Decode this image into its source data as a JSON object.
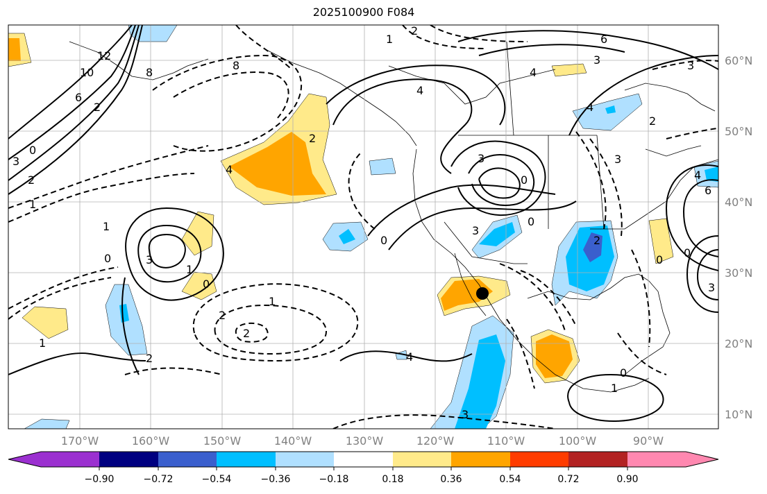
{
  "title": "2025100900 F084",
  "lat_labels": [
    "60°N",
    "50°N",
    "40°N",
    "30°N",
    "20°N",
    "10°N"
  ],
  "lon_labels": [
    "170°W",
    "160°W",
    "150°W",
    "140°W",
    "130°W",
    "120°W",
    "110°W",
    "100°W",
    "90°W"
  ],
  "colorbar": {
    "tick_labels": [
      "−0.90",
      "−0.72",
      "−0.54",
      "−0.36",
      "−0.18",
      "0.18",
      "0.36",
      "0.54",
      "0.72",
      "0.90"
    ],
    "colors": [
      "#9b30d0",
      "#000080",
      "#3a5fcd",
      "#00bfff",
      "#b0e0ff",
      "#ffffff",
      "#ffea8a",
      "#ffa500",
      "#ff3c00",
      "#b22222",
      "#ff88b0"
    ]
  },
  "contour_labels": [
    "2",
    "1",
    "6",
    "3",
    "4",
    "8",
    "10",
    "12",
    "8",
    "6",
    "4",
    "2",
    "0",
    "1",
    "2",
    "4",
    "3",
    "2",
    "0",
    "1",
    "2",
    "2",
    "1",
    "0",
    "3",
    "0",
    "1",
    "1",
    "2",
    "4",
    "3",
    "3",
    "0",
    "0",
    "3",
    "2",
    "0",
    "1",
    "2",
    "0",
    "0",
    "3",
    "3",
    "4",
    "6",
    "3",
    "4"
  ],
  "marker": "storm-position"
}
